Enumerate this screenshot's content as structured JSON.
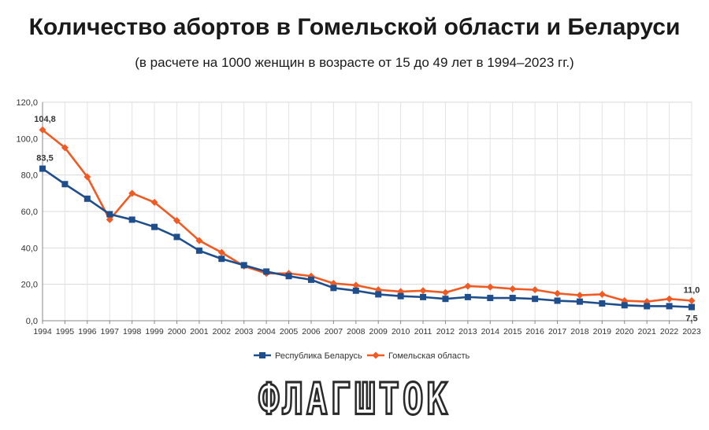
{
  "chart_data": {
    "type": "line",
    "title": "Количество абортов в Гомельской области и Беларуси",
    "subtitle": "(в расчете на 1000 женщин в возрасте от 15 до 49 лет в 1994–2023 гг.)",
    "x": [
      "1994",
      "1995",
      "1996",
      "1997",
      "1998",
      "1999",
      "2000",
      "2001",
      "2002",
      "2003",
      "2004",
      "2005",
      "2006",
      "2007",
      "2008",
      "2009",
      "2010",
      "2011",
      "2012",
      "2013",
      "2014",
      "2015",
      "2016",
      "2017",
      "2018",
      "2019",
      "2020",
      "2021",
      "2022",
      "2023"
    ],
    "ylim": [
      0,
      120
    ],
    "yticks": [
      "0,0",
      "20,0",
      "40,0",
      "60,0",
      "80,0",
      "100,0",
      "120,0"
    ],
    "grid": true,
    "legend_position": "bottom",
    "series": [
      {
        "name": "Республика Беларусь",
        "color": "#1f4e8c",
        "marker": "square",
        "values": [
          83.5,
          75.0,
          67.0,
          58.5,
          55.5,
          51.5,
          46.0,
          38.5,
          34.0,
          30.5,
          27.0,
          24.5,
          22.5,
          18.0,
          16.5,
          14.5,
          13.5,
          13.0,
          12.0,
          13.0,
          12.5,
          12.5,
          12.0,
          11.0,
          10.5,
          9.5,
          8.5,
          8.0,
          8.0,
          7.5
        ]
      },
      {
        "name": "Гомельская область",
        "color": "#f05a23",
        "marker": "diamond",
        "values": [
          104.8,
          95.0,
          79.0,
          55.5,
          70.0,
          65.0,
          55.0,
          44.0,
          37.5,
          30.0,
          26.0,
          26.0,
          24.5,
          20.5,
          19.5,
          17.0,
          16.0,
          16.5,
          15.5,
          19.0,
          18.5,
          17.5,
          17.0,
          15.0,
          14.0,
          14.5,
          11.0,
          10.5,
          12.0,
          11.0
        ]
      }
    ],
    "annotations": [
      {
        "series": 1,
        "index": 0,
        "label": "104,8"
      },
      {
        "series": 0,
        "index": 0,
        "label": "83,5"
      },
      {
        "series": 1,
        "index": 29,
        "label": "11,0"
      },
      {
        "series": 0,
        "index": 29,
        "label": "7,5"
      }
    ]
  },
  "logo_text": "ФЛАГШТОК"
}
